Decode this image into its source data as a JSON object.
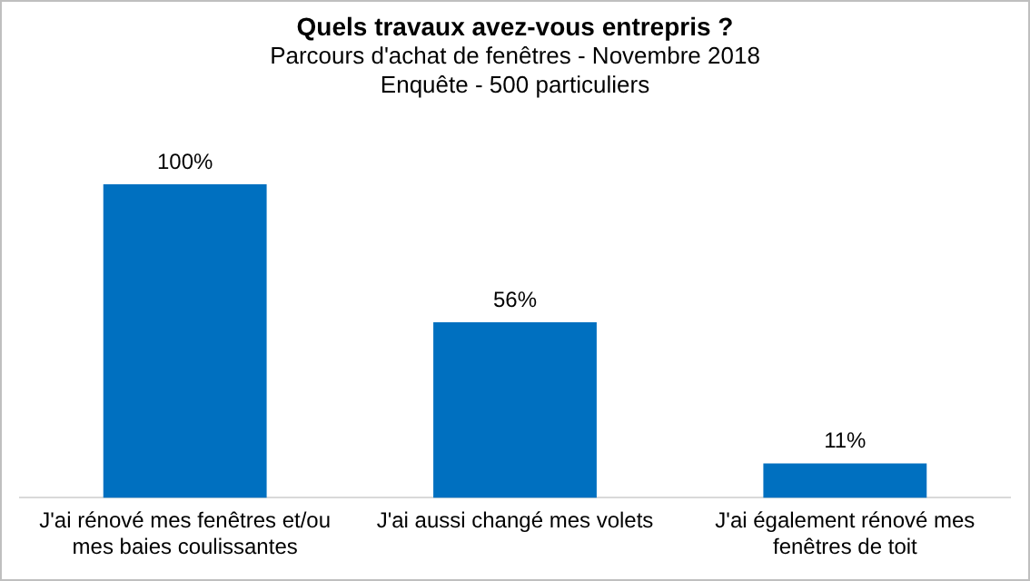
{
  "chart_data": {
    "type": "bar",
    "title": "Quels travaux avez-vous entrepris ?",
    "subtitle": "Parcours d'achat de fenêtres - Novembre 2018\nEnquête - 500 particuliers",
    "categories": [
      "J'ai rénové mes fenêtres et/ou mes baies coulissantes",
      "J'ai aussi changé mes volets",
      "J'ai également rénové mes fenêtres de toit"
    ],
    "values": [
      100,
      56,
      11
    ],
    "value_labels": [
      "100%",
      "56%",
      "11%"
    ],
    "color": "#0070c0",
    "grid": false,
    "legend": false
  }
}
